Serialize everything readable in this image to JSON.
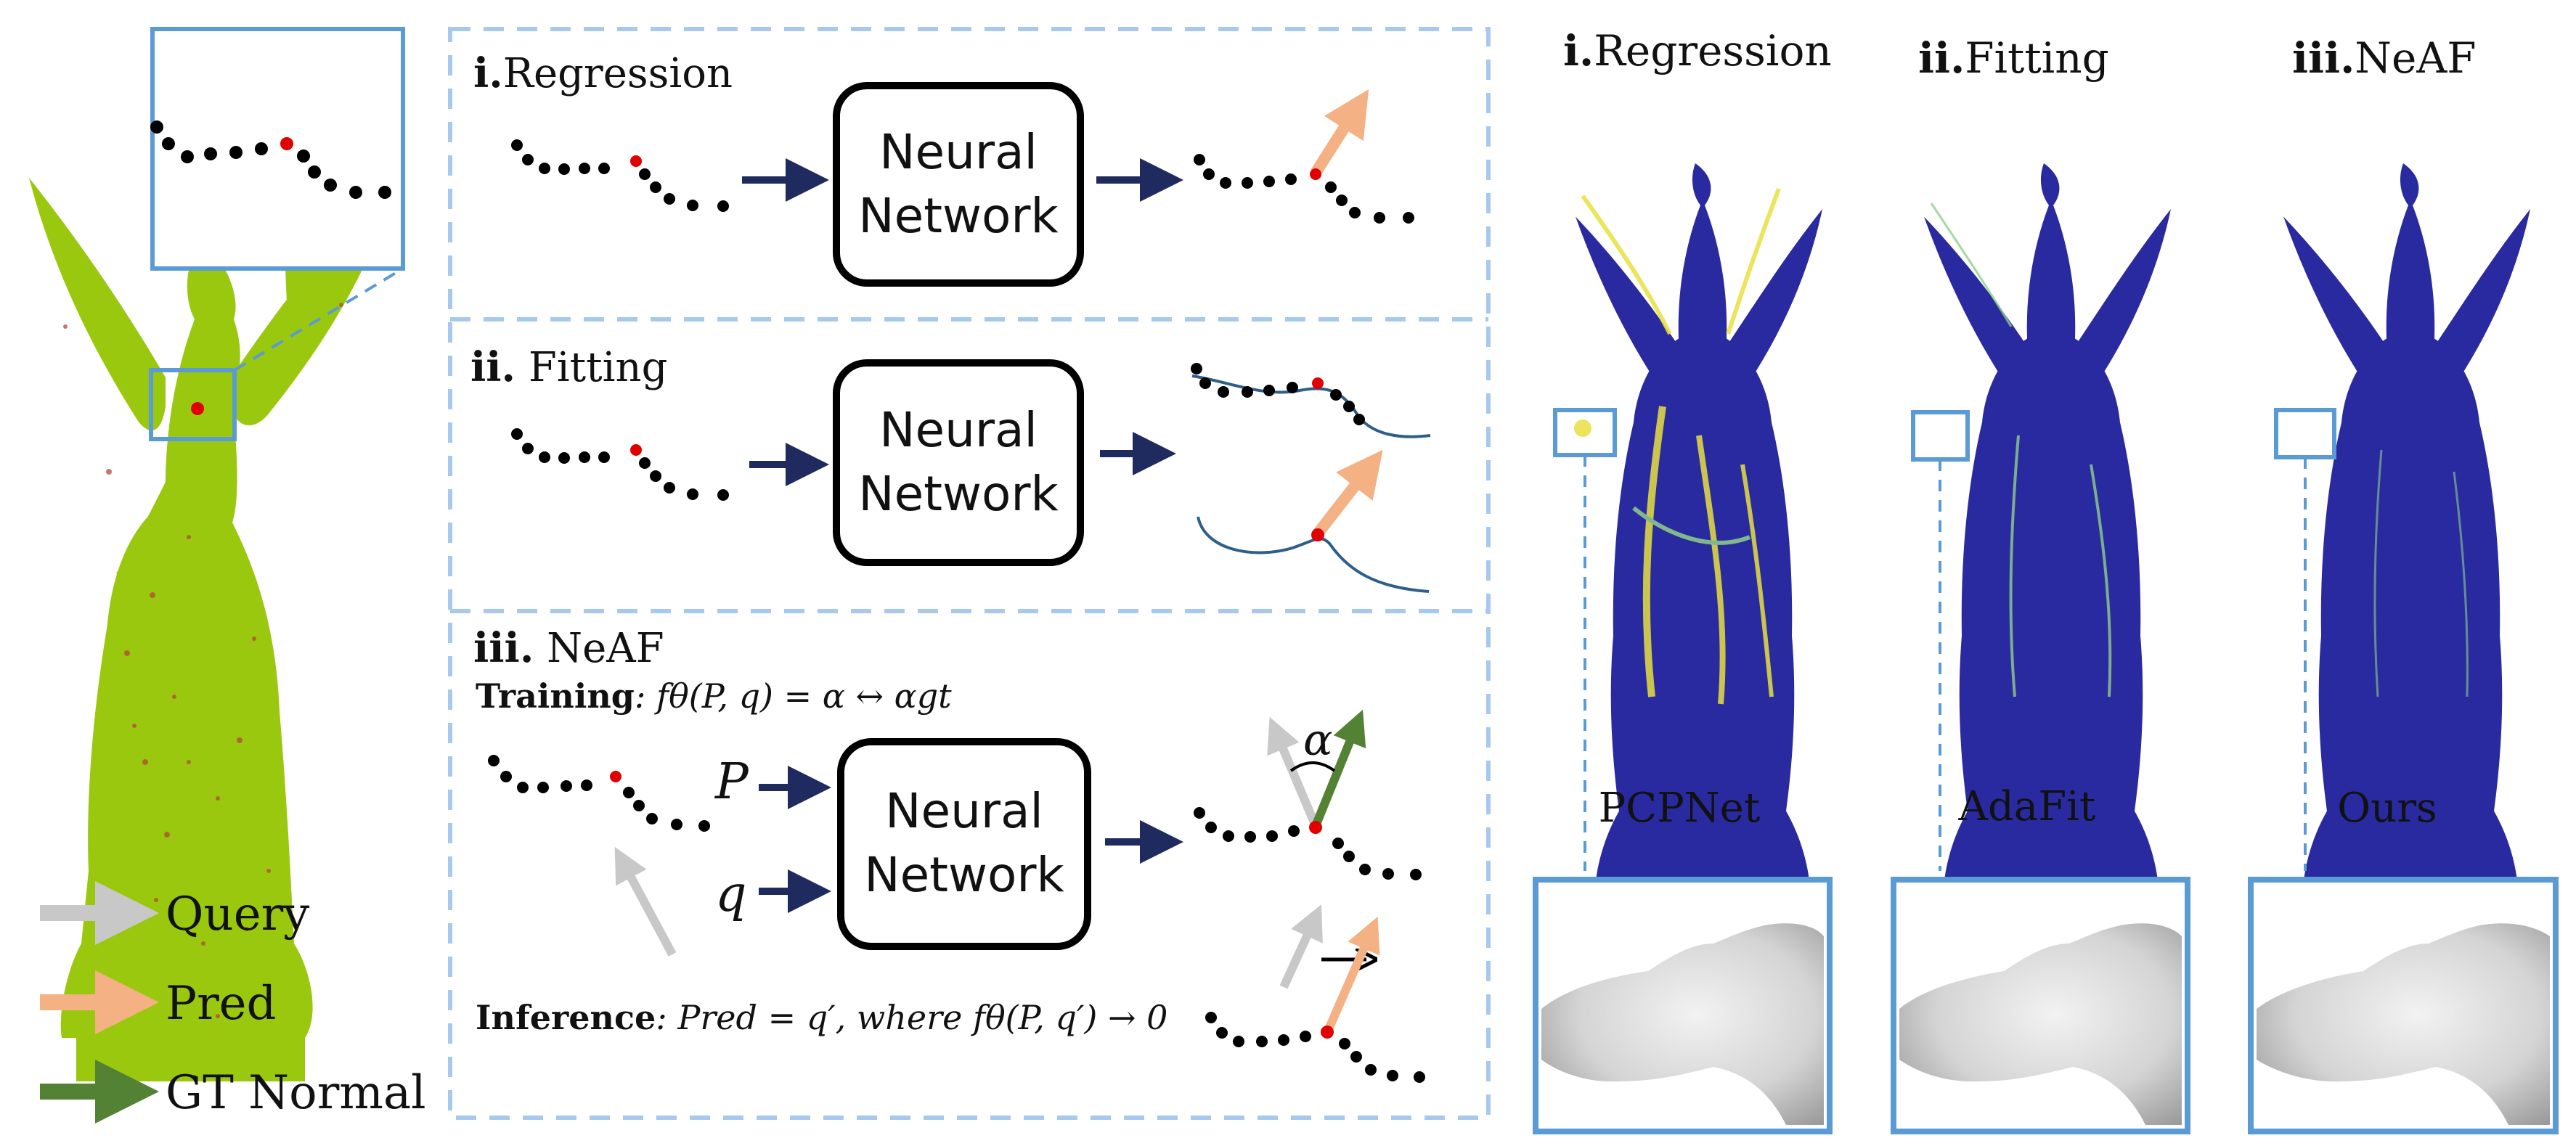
{
  "colors": {
    "statue_green": "#9ac80f",
    "blue_box": "#5b9bd5",
    "dashed_panel": "#a7c9f0",
    "navy_arrow": "#1f2a5e",
    "query_gray": "#c8c8c8",
    "pred_orange": "#f4b183",
    "gt_green": "#548235",
    "point_black": "#000000",
    "point_red": "#e00000",
    "heat_blue": "#2a2aa0",
    "heat_yellow": "#e8e040"
  },
  "panels": {
    "regression": {
      "num": "i.",
      "title": "Regression",
      "nn_line1": "Neural",
      "nn_line2": "Network"
    },
    "fitting": {
      "num": "ii.",
      "title": " Fitting",
      "nn_line1": "Neural",
      "nn_line2": "Network"
    },
    "neaf": {
      "num": "iii.",
      "title": " NeAF",
      "training_label": "Training",
      "training_formula": ": fθ(P, q) = α ↔ αgt",
      "input_p": "P",
      "input_q": "q",
      "alpha": "α",
      "nn_line1": "Neural",
      "nn_line2": "Network",
      "inference_label": "Inference",
      "inference_formula": ": Pred = q′, where fθ(P, q′) → 0"
    }
  },
  "legend": {
    "query": "Query",
    "pred": "Pred",
    "gt": "GT Normal"
  },
  "comparison": {
    "headers": [
      {
        "num": "i.",
        "text": "Regression"
      },
      {
        "num": "ii.",
        "text": "Fitting"
      },
      {
        "num": "iii.",
        "text": "NeAF"
      }
    ],
    "methods": [
      "PCPNet",
      "AdaFit",
      "Ours"
    ]
  }
}
